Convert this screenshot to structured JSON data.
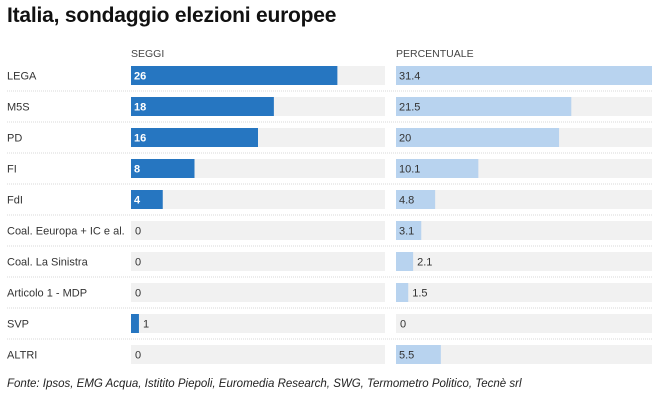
{
  "title": "Italia, sondaggio elezioni europee",
  "source": "Fonte: Ipsos, EMG Acqua, Istitito Piepoli, Euromedia Research, SWG, Termometro Politico, Tecnè srl",
  "colors": {
    "seggi_bar": "#2676c1",
    "perc_bar": "#b8d3ef",
    "track": "#f1f1f1",
    "separator": "#d9d9d9"
  },
  "chart_data": {
    "type": "bar",
    "title": "Italia, sondaggio elezioni europee",
    "categories": [
      "LEGA",
      "M5S",
      "PD",
      "FI",
      "FdI",
      "Coal. Eeuropa + IC e al.",
      "Coal. La Sinistra",
      "Articolo 1 - MDP",
      "SVP",
      "ALTRI"
    ],
    "series": [
      {
        "name": "SEGGI",
        "values": [
          26,
          18,
          16,
          8,
          4,
          0,
          0,
          0,
          1,
          0
        ],
        "labels": [
          "26",
          "18",
          "16",
          "8",
          "4",
          "0",
          "0",
          "0",
          "1",
          "0"
        ],
        "xlim": [
          0,
          32
        ]
      },
      {
        "name": "PERCENTUALE",
        "values": [
          31.4,
          21.5,
          20,
          10.1,
          4.8,
          3.1,
          2.1,
          1.5,
          0,
          5.5
        ],
        "labels": [
          "31.4",
          "21.5",
          "20",
          "10.1",
          "4.8",
          "3.1",
          "2.1",
          "1.5",
          "0",
          "5.5"
        ],
        "xlim": [
          0,
          31.4
        ]
      }
    ]
  }
}
